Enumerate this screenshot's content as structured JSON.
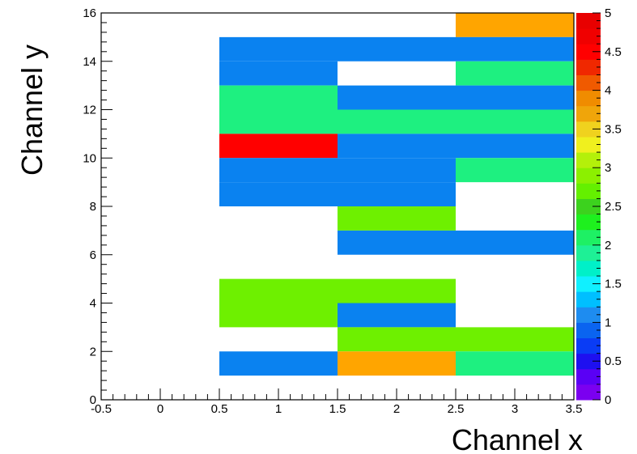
{
  "chart_data": {
    "type": "heatmap",
    "title": "",
    "xlabel": "Channel x",
    "ylabel": "Channel y",
    "xlim": [
      -0.5,
      3.5
    ],
    "ylim": [
      0,
      16
    ],
    "zlim": [
      0,
      5
    ],
    "x_ticks": [
      -0.5,
      0,
      0.5,
      1,
      1.5,
      2,
      2.5,
      3,
      3.5
    ],
    "x_tick_labels": [
      "-0.5",
      "0",
      "0.5",
      "1",
      "1.5",
      "2",
      "2.5",
      "3",
      "3.5"
    ],
    "y_ticks": [
      0,
      2,
      4,
      6,
      8,
      10,
      12,
      14,
      16
    ],
    "y_tick_labels": [
      "0",
      "2",
      "4",
      "6",
      "8",
      "10",
      "12",
      "14",
      "16"
    ],
    "z_ticks": [
      0,
      0.5,
      1,
      1.5,
      2,
      2.5,
      3,
      3.5,
      4,
      4.5,
      5
    ],
    "z_tick_labels": [
      "0",
      "0.5",
      "1",
      "1.5",
      "2",
      "2.5",
      "3",
      "3.5",
      "4",
      "4.5",
      "5"
    ],
    "colorbar_colors": [
      "#7b00f0",
      "#5a00f5",
      "#1e10f0",
      "#0a3cf5",
      "#0a64f0",
      "#1e8cf0",
      "#00bfff",
      "#10f0ff",
      "#00f0c8",
      "#1ef096",
      "#1ef064",
      "#1ef01e",
      "#3cd21e",
      "#64f000",
      "#8cf000",
      "#b4f00a",
      "#f0f01e",
      "#f0d21e",
      "#f0a50a",
      "#f08c00",
      "#f05a00",
      "#f02800",
      "#ff0000",
      "#f00000",
      "#e80000"
    ],
    "cells": [
      {
        "x0": 2.5,
        "x1": 3.5,
        "y0": 15,
        "y1": 16,
        "value": 4,
        "color": "#ffa500"
      },
      {
        "x0": 0.5,
        "x1": 3.5,
        "y0": 14,
        "y1": 15,
        "value": 1.2,
        "color": "#0a82f0"
      },
      {
        "x0": 0.5,
        "x1": 1.5,
        "y0": 13,
        "y1": 14,
        "value": 1.2,
        "color": "#0a82f0"
      },
      {
        "x0": 2.5,
        "x1": 3.5,
        "y0": 13,
        "y1": 14,
        "value": 2,
        "color": "#1ef080"
      },
      {
        "x0": 0.5,
        "x1": 1.5,
        "y0": 12,
        "y1": 13,
        "value": 2,
        "color": "#1ef080"
      },
      {
        "x0": 1.5,
        "x1": 3.5,
        "y0": 12,
        "y1": 13,
        "value": 1.2,
        "color": "#0a82f0"
      },
      {
        "x0": 0.5,
        "x1": 3.5,
        "y0": 11,
        "y1": 12,
        "value": 2,
        "color": "#1ef080"
      },
      {
        "x0": 0.5,
        "x1": 1.5,
        "y0": 10,
        "y1": 11,
        "value": 5,
        "color": "#ff0000"
      },
      {
        "x0": 1.5,
        "x1": 3.5,
        "y0": 10,
        "y1": 11,
        "value": 1.2,
        "color": "#0a82f0"
      },
      {
        "x0": 0.5,
        "x1": 2.5,
        "y0": 9,
        "y1": 10,
        "value": 1.2,
        "color": "#0a82f0"
      },
      {
        "x0": 2.5,
        "x1": 3.5,
        "y0": 9,
        "y1": 10,
        "value": 2,
        "color": "#1ef080"
      },
      {
        "x0": 0.5,
        "x1": 2.5,
        "y0": 8,
        "y1": 9,
        "value": 1.2,
        "color": "#0a82f0"
      },
      {
        "x0": 1.5,
        "x1": 2.5,
        "y0": 7,
        "y1": 8,
        "value": 3.2,
        "color": "#6ef000"
      },
      {
        "x0": 1.5,
        "x1": 3.5,
        "y0": 6,
        "y1": 7,
        "value": 1.2,
        "color": "#0a82f0"
      },
      {
        "x0": 0.5,
        "x1": 2.5,
        "y0": 4,
        "y1": 5,
        "value": 3.2,
        "color": "#6ef000"
      },
      {
        "x0": 0.5,
        "x1": 1.5,
        "y0": 3,
        "y1": 4,
        "value": 3.2,
        "color": "#6ef000"
      },
      {
        "x0": 1.5,
        "x1": 2.5,
        "y0": 3,
        "y1": 4,
        "value": 1.2,
        "color": "#0a82f0"
      },
      {
        "x0": 1.5,
        "x1": 3.5,
        "y0": 2,
        "y1": 3,
        "value": 3.2,
        "color": "#6ef000"
      },
      {
        "x0": 0.5,
        "x1": 1.5,
        "y0": 1,
        "y1": 2,
        "value": 1.2,
        "color": "#0a82f0"
      },
      {
        "x0": 1.5,
        "x1": 2.5,
        "y0": 1,
        "y1": 2,
        "value": 4,
        "color": "#ffa500"
      },
      {
        "x0": 2.5,
        "x1": 3.5,
        "y0": 1,
        "y1": 2,
        "value": 2,
        "color": "#1ef080"
      }
    ]
  }
}
